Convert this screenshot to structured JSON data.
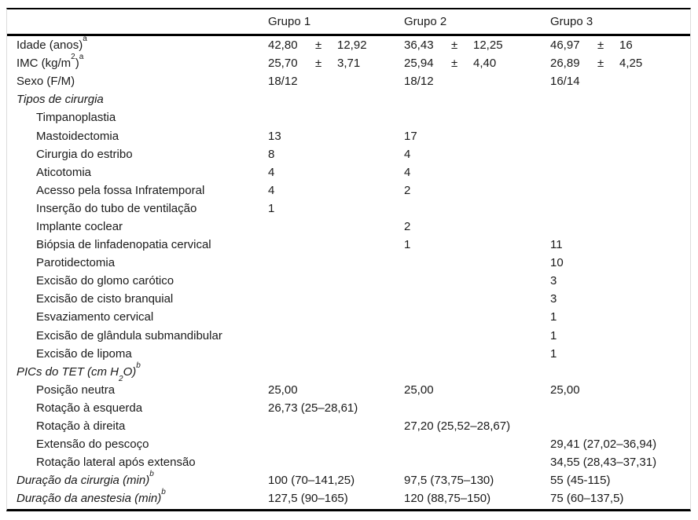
{
  "table": {
    "columns": [
      "Grupo 1",
      "Grupo 2",
      "Grupo 3"
    ],
    "pm": "±",
    "rows": [
      {
        "label": [
          [
            "t",
            "Idade (anos)"
          ],
          [
            "sup",
            "a"
          ]
        ],
        "g1": {
          "m": "42,80",
          "sd": "12,92"
        },
        "g2": {
          "m": "36,43",
          "sd": "12,25"
        },
        "g3": {
          "m": "46,97",
          "sd": "16"
        }
      },
      {
        "label": [
          [
            "t",
            "IMC (kg/m"
          ],
          [
            "sup",
            "2"
          ],
          [
            "t",
            ")"
          ],
          [
            "sup",
            "a"
          ]
        ],
        "g1": {
          "m": "25,70",
          "sd": "3,71"
        },
        "g2": {
          "m": "25,94",
          "sd": "4,40"
        },
        "g3": {
          "m": "26,89",
          "sd": "4,25"
        }
      },
      {
        "label": [
          [
            "t",
            "Sexo (F/M)"
          ]
        ],
        "g1": {
          "v": "18/12"
        },
        "g2": {
          "v": "18/12"
        },
        "g3": {
          "v": "16/14"
        }
      },
      {
        "label": [
          [
            "t",
            "Tipos de cirurgia"
          ]
        ],
        "style": "section"
      },
      {
        "label": [
          [
            "t",
            "Timpanoplastia"
          ]
        ],
        "style": "indent"
      },
      {
        "label": [
          [
            "t",
            "Mastoidectomia"
          ]
        ],
        "style": "indent",
        "g1": {
          "v": "13"
        },
        "g2": {
          "v": "17"
        }
      },
      {
        "label": [
          [
            "t",
            "Cirurgia do estribo"
          ]
        ],
        "style": "indent",
        "g1": {
          "v": "8"
        },
        "g2": {
          "v": "4"
        }
      },
      {
        "label": [
          [
            "t",
            "Aticotomia"
          ]
        ],
        "style": "indent",
        "g1": {
          "v": "4"
        },
        "g2": {
          "v": "4"
        }
      },
      {
        "label": [
          [
            "t",
            "Acesso pela fossa Infratemporal"
          ]
        ],
        "style": "indent",
        "g1": {
          "v": "4"
        },
        "g2": {
          "v": "2"
        }
      },
      {
        "label": [
          [
            "t",
            "Inserção do tubo de ventilação"
          ]
        ],
        "style": "indent",
        "g1": {
          "v": "1"
        }
      },
      {
        "label": [
          [
            "t",
            "Implante coclear"
          ]
        ],
        "style": "indent",
        "g2": {
          "v": "2"
        }
      },
      {
        "label": [
          [
            "t",
            "Biópsia de linfadenopatia cervical"
          ]
        ],
        "style": "indent",
        "g2": {
          "v": "1"
        },
        "g3": {
          "v": "11"
        }
      },
      {
        "label": [
          [
            "t",
            "Parotidectomia"
          ]
        ],
        "style": "indent",
        "g3": {
          "v": "10"
        }
      },
      {
        "label": [
          [
            "t",
            "Excisão do glomo carótico"
          ]
        ],
        "style": "indent",
        "g3": {
          "v": "3"
        }
      },
      {
        "label": [
          [
            "t",
            "Excisão de cisto branquial"
          ]
        ],
        "style": "indent",
        "g3": {
          "v": "3"
        }
      },
      {
        "label": [
          [
            "t",
            "Esvaziamento cervical"
          ]
        ],
        "style": "indent",
        "g3": {
          "v": "1"
        }
      },
      {
        "label": [
          [
            "t",
            "Excisão de glândula submandibular"
          ]
        ],
        "style": "indent",
        "g3": {
          "v": "1"
        }
      },
      {
        "label": [
          [
            "t",
            "Excisão de lipoma"
          ]
        ],
        "style": "indent",
        "g3": {
          "v": "1"
        }
      },
      {
        "label": [
          [
            "t",
            "PICs do TET (cm H"
          ],
          [
            "sub",
            "2"
          ],
          [
            "t",
            "O)"
          ],
          [
            "sup",
            "b"
          ]
        ],
        "style": "section"
      },
      {
        "label": [
          [
            "t",
            "Posição neutra"
          ]
        ],
        "style": "indent",
        "g1": {
          "v": "25,00"
        },
        "g2": {
          "v": "25,00"
        },
        "g3": {
          "v": "25,00"
        }
      },
      {
        "label": [
          [
            "t",
            "Rotação à esquerda"
          ]
        ],
        "style": "indent",
        "g1": {
          "v": "26,73 (25–28,61)"
        }
      },
      {
        "label": [
          [
            "t",
            "Rotação à direita"
          ]
        ],
        "style": "indent",
        "g2": {
          "v": "27,20 (25,52–28,67)"
        }
      },
      {
        "label": [
          [
            "t",
            "Extensão do pescoço"
          ]
        ],
        "style": "indent",
        "g3": {
          "v": "29,41 (27,02–36,94)"
        }
      },
      {
        "label": [
          [
            "t",
            "Rotação lateral após extensão"
          ]
        ],
        "style": "indent",
        "g3": {
          "v": "34,55 (28,43–37,31)"
        }
      },
      {
        "label": [
          [
            "t",
            "Duração da cirurgia (min)"
          ],
          [
            "sup",
            "b"
          ]
        ],
        "style": "section",
        "g1": {
          "v": "100 (70–141,25)"
        },
        "g2": {
          "v": "97,5 (73,75–130)"
        },
        "g3": {
          "v": "55 (45-115)"
        }
      },
      {
        "label": [
          [
            "t",
            "Duração da anestesia (min)"
          ],
          [
            "sup",
            "b"
          ]
        ],
        "style": "section",
        "g1": {
          "v": "127,5 (90–165)"
        },
        "g2": {
          "v": "120 (88,75–150)"
        },
        "g3": {
          "v": "75 (60–137,5)"
        }
      }
    ]
  }
}
